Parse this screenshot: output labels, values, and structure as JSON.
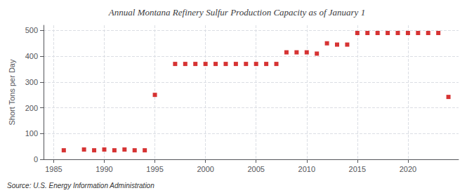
{
  "chart_data": {
    "type": "scatter",
    "title": "Annual Montana Refinery Sulfur Production Capacity as of January 1",
    "ylabel": "Short Tons per Day",
    "source": "Source: U.S. Energy Information Administration",
    "x": [
      1986,
      1988,
      1989,
      1990,
      1991,
      1992,
      1993,
      1994,
      1995,
      1997,
      1998,
      1999,
      2000,
      2001,
      2002,
      2003,
      2004,
      2005,
      2006,
      2007,
      2008,
      2009,
      2010,
      2011,
      2012,
      2013,
      2014,
      2015,
      2016,
      2017,
      2018,
      2019,
      2020,
      2021,
      2022,
      2023,
      2024
    ],
    "values": [
      35,
      38,
      35,
      38,
      35,
      38,
      35,
      35,
      250,
      370,
      370,
      370,
      370,
      370,
      370,
      370,
      370,
      370,
      370,
      370,
      415,
      415,
      415,
      410,
      450,
      445,
      445,
      490,
      490,
      490,
      490,
      490,
      490,
      490,
      490,
      490,
      242
    ],
    "color": "#cc0000",
    "marker": "square",
    "grid": true,
    "xlim": [
      1984,
      2025
    ],
    "ylim": [
      0,
      520
    ],
    "xticks": [
      1985,
      1990,
      1995,
      2000,
      2005,
      2010,
      2015,
      2020
    ],
    "yticks": [
      0,
      100,
      200,
      300,
      400,
      500
    ]
  }
}
